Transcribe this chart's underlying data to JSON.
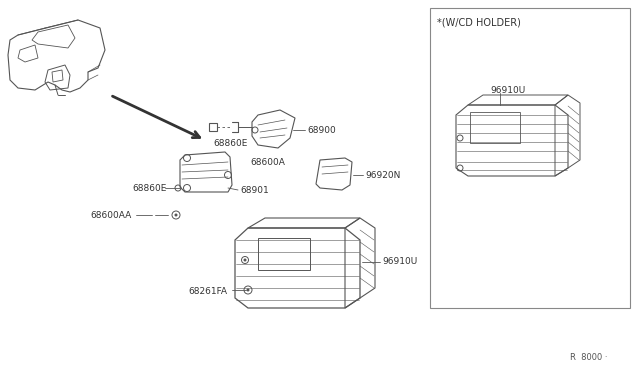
{
  "bg_color": "#ffffff",
  "line_color": "#555555",
  "dark_color": "#333333",
  "footnote": "R  8000 ·",
  "cd_holder_label": "*(W/CD HOLDER)",
  "label_68860E_up": "68860E",
  "label_68600A": "68600A",
  "label_68900": "68900",
  "label_68860E_dn": "68860E",
  "label_68901": "68901",
  "label_96920N": "96920N",
  "label_68600AA": "68600AA",
  "label_68261FA": "68261FA",
  "label_96910U_main": "96910U",
  "label_96910U_cd": "96910U"
}
